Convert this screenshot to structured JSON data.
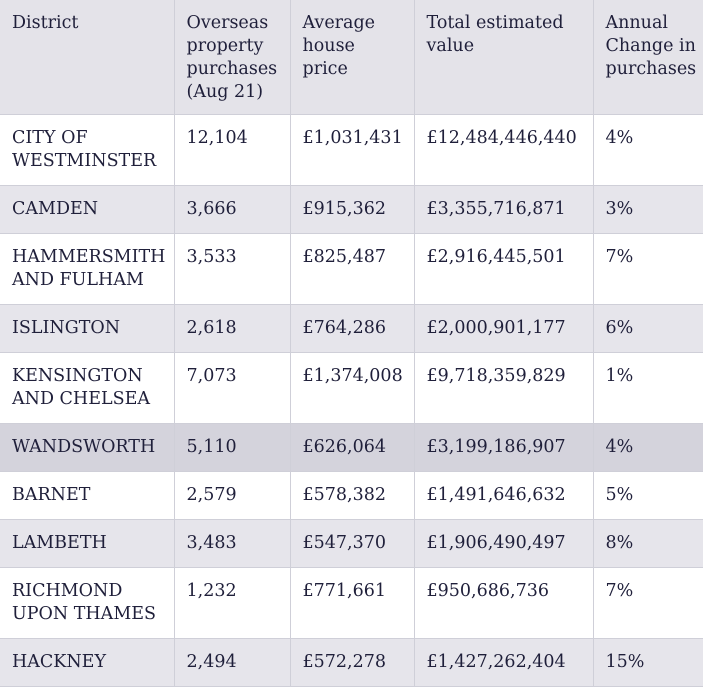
{
  "table": {
    "headers": [
      "District",
      "Overseas property purchases (Aug 21)",
      "Average house price",
      "Total estimated value",
      "Annual Change in purchases"
    ],
    "rows": [
      [
        "CITY OF WESTMINSTER",
        "12,104",
        "£1,031,431",
        "£12,484,446,440",
        "4%"
      ],
      [
        "CAMDEN",
        "3,666",
        "£915,362",
        "£3,355,716,871",
        "3%"
      ],
      [
        "HAMMERSMITH AND FULHAM",
        "3,533",
        "£825,487",
        "£2,916,445,501",
        "7%"
      ],
      [
        "ISLINGTON",
        "2,618",
        "£764,286",
        "£2,000,901,177",
        "6%"
      ],
      [
        "KENSINGTON AND CHELSEA",
        "7,073",
        "£1,374,008",
        "£9,718,359,829",
        "1%"
      ],
      [
        "WANDSWORTH",
        "5,110",
        "£626,064",
        "£3,199,186,907",
        "4%"
      ],
      [
        "BARNET",
        "2,579",
        "£578,382",
        "£1,491,646,632",
        "5%"
      ],
      [
        "LAMBETH",
        "3,483",
        "£547,370",
        "£1,906,490,497",
        "8%"
      ],
      [
        "RICHMOND UPON THAMES",
        "1,232",
        "£771,661",
        "£950,686,736",
        "7%"
      ],
      [
        "HACKNEY",
        "2,494",
        "£572,278",
        "£1,427,262,404",
        "15%"
      ]
    ]
  },
  "colors": {
    "header_bg": "#e4e3e9",
    "alt_row_bg": "#e6e5eb",
    "highlight_row_bg": "#d4d3dc",
    "text": "#1f1f3a"
  }
}
